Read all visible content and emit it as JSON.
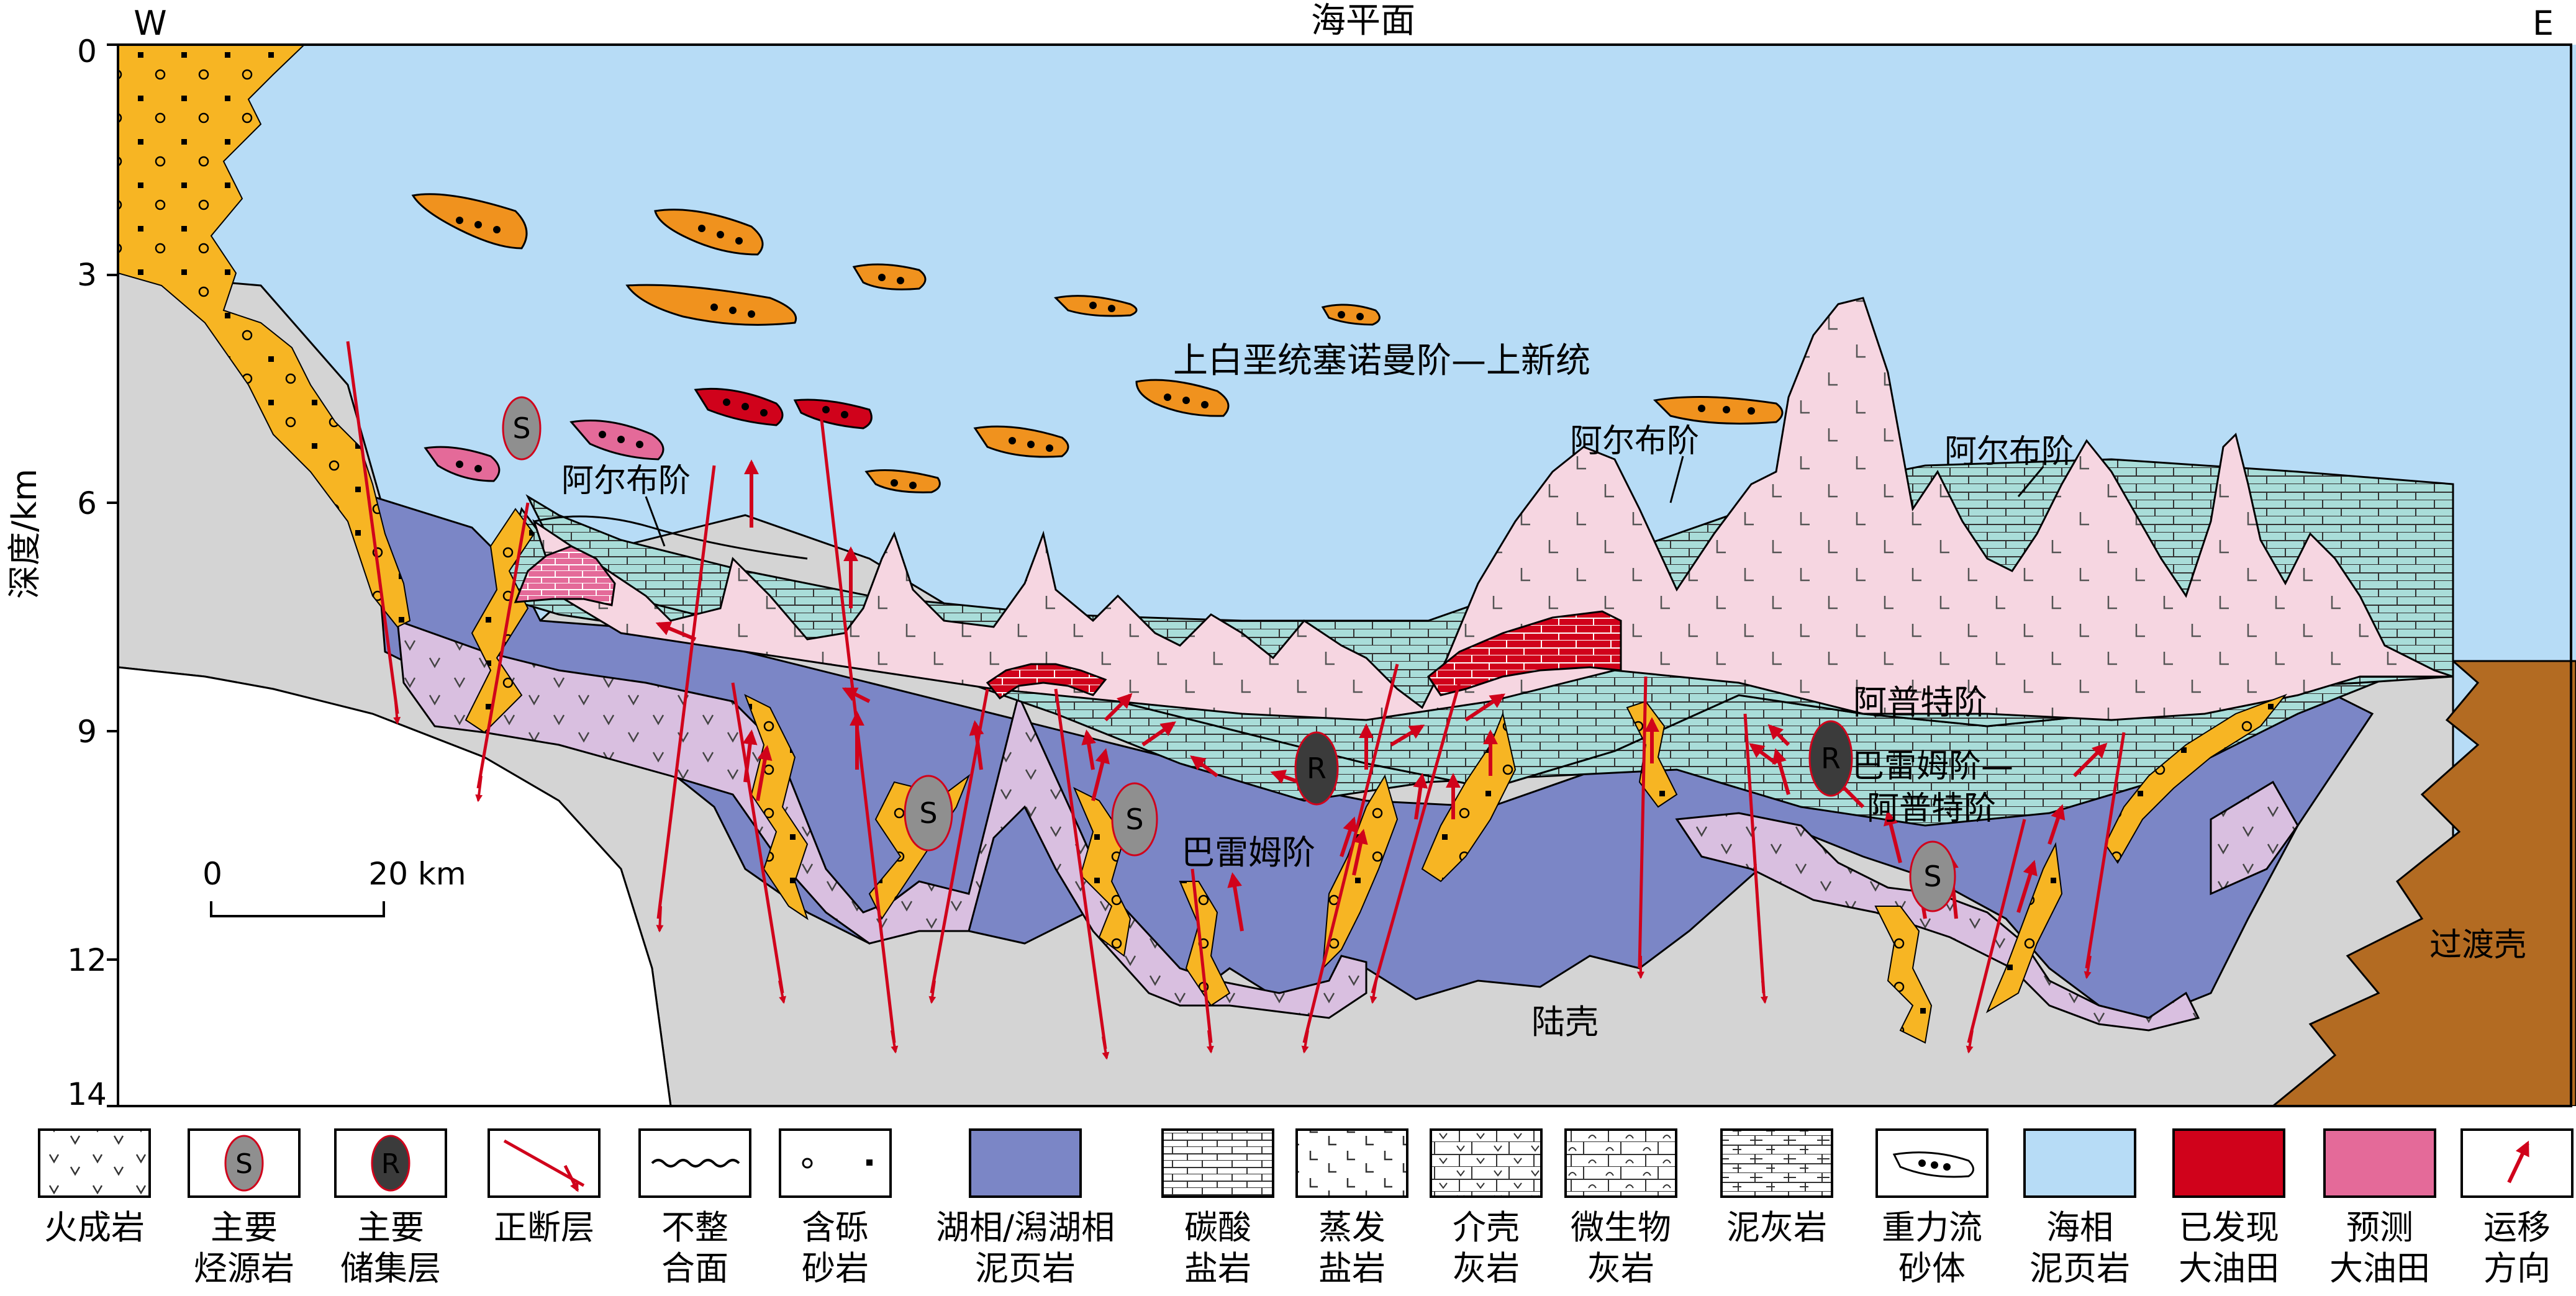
{
  "header": {
    "west": "W",
    "east": "E",
    "sea_level": "海平面"
  },
  "axis": {
    "label": "深度/km",
    "ticks": [
      "0",
      "3",
      "6",
      "9",
      "12",
      "14"
    ]
  },
  "scale": {
    "zero": "0",
    "label": "20 km"
  },
  "labels": {
    "upper": "上白垩统塞诺曼阶—上新统",
    "albian1": "阿尔布阶",
    "albian2": "阿尔布阶",
    "albian3": "阿尔布阶",
    "aptian": "阿普特阶",
    "barremian_aptian_1": "巴雷姆阶—",
    "barremian_aptian_2": "阿普特阶",
    "barremian": "巴雷姆阶",
    "continental": "陆壳",
    "transitional": "过渡壳",
    "source_mark": "S",
    "reservoir_mark": "R"
  },
  "legend": [
    {
      "icon": "igneous",
      "l1": "火成岩",
      "l2": ""
    },
    {
      "icon": "source",
      "l1": "主要",
      "l2": "烃源岩"
    },
    {
      "icon": "reservoir",
      "l1": "主要",
      "l2": "储集层"
    },
    {
      "icon": "fault",
      "l1": "正断层",
      "l2": ""
    },
    {
      "icon": "unconformity",
      "l1": "不整",
      "l2": "合面"
    },
    {
      "icon": "conglomerate",
      "l1": "含砾",
      "l2": "砂岩"
    },
    {
      "icon": "lacustrine",
      "l1": "湖相/潟湖相",
      "l2": "泥页岩"
    },
    {
      "icon": "carbonate",
      "l1": "碳酸",
      "l2": "盐岩"
    },
    {
      "icon": "evaporite",
      "l1": "蒸发",
      "l2": "盐岩"
    },
    {
      "icon": "coquina",
      "l1": "介壳",
      "l2": "灰岩"
    },
    {
      "icon": "microbial",
      "l1": "微生物",
      "l2": "灰岩"
    },
    {
      "icon": "marl",
      "l1": "泥灰岩",
      "l2": ""
    },
    {
      "icon": "turbidite",
      "l1": "重力流",
      "l2": "砂体"
    },
    {
      "icon": "marine",
      "l1": "海相",
      "l2": "泥页岩"
    },
    {
      "icon": "discovered",
      "l1": "已发现",
      "l2": "大油田"
    },
    {
      "icon": "predicted",
      "l1": "预测",
      "l2": "大油田"
    },
    {
      "icon": "migration",
      "l1": "运移",
      "l2": "方向"
    }
  ],
  "colors": {
    "sea": "#b7dcf6",
    "crust": "#d4d4d4",
    "transitional": "#b36b22",
    "lacustrine": "#7b86c6",
    "igneous": "#d9bfe0",
    "evaporite": "#f6d6e1",
    "carbonate": "#a9ddd9",
    "sand": "#f7b523",
    "turbidite": "#f0921e",
    "oil": "#d0021b",
    "predicted": "#e46a99"
  }
}
